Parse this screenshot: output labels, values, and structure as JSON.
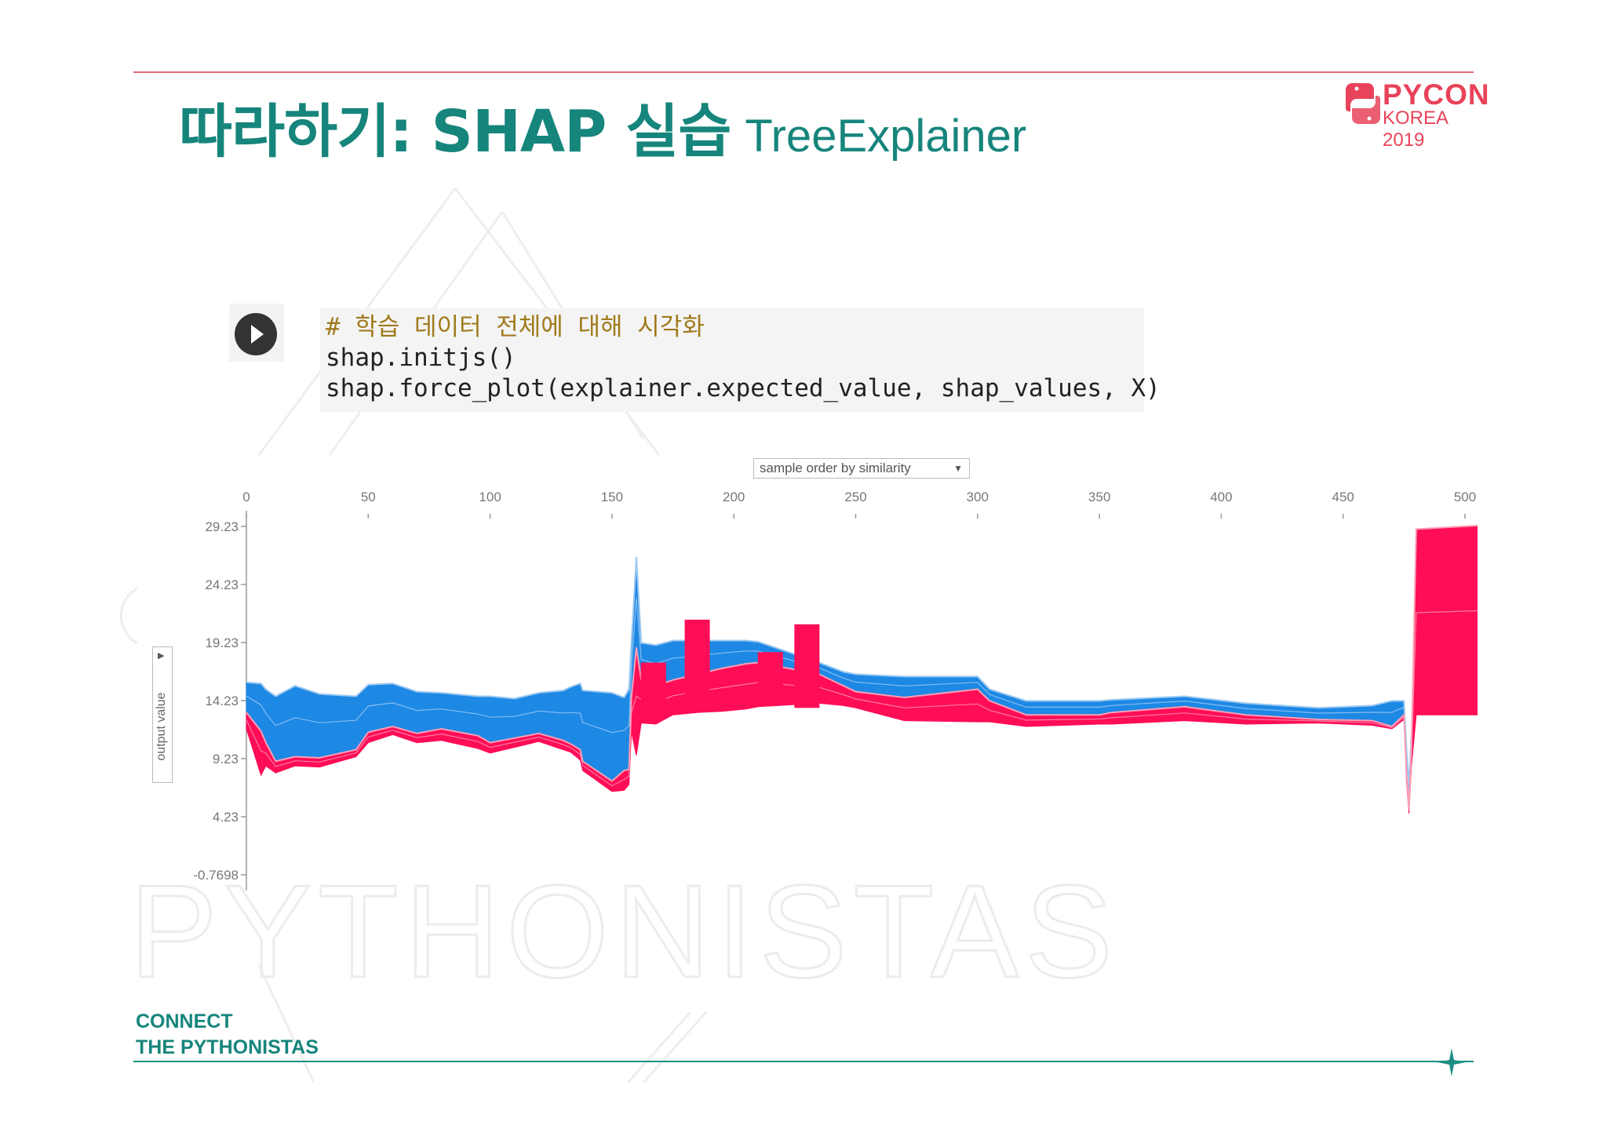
{
  "slide": {
    "title_main": "따라하기: SHAP 실습",
    "title_sub": "TreeExplainer",
    "footer_line1": "CONNECT",
    "footer_line2": "THE PYTHONISTAS",
    "watermark": "PYTHONISTAS",
    "accent_color": "#16857c",
    "brand_color": "#e8435a"
  },
  "logo": {
    "line1": "PYCON",
    "line2": "KOREA 2019",
    "icon": "python-logo-icon"
  },
  "code": {
    "run_icon": "play-icon",
    "comment": "# 학습 데이터 전체에 대해 시각화",
    "line2": "shap.initjs()",
    "line3": "shap.force_plot(explainer.expected_value, shap_values, X)"
  },
  "controls": {
    "x_selector": "sample order by similarity",
    "y_selector": "output value"
  },
  "chart_data": {
    "type": "area",
    "title": "",
    "xlabel": "sample order by similarity",
    "ylabel": "output value",
    "xlim": [
      0,
      505
    ],
    "ylim": [
      -0.7698,
      30.2
    ],
    "x_ticks": [
      0,
      50,
      100,
      150,
      200,
      250,
      300,
      350,
      400,
      450,
      500
    ],
    "y_ticks": [
      "29.23",
      "24.23",
      "19.23",
      "14.23",
      "9.23",
      "4.23",
      "-0.7698"
    ],
    "y_tick_values": [
      29.23,
      24.23,
      19.23,
      14.23,
      9.23,
      4.23,
      -0.7698
    ],
    "colors": {
      "positive": "#ff0d57",
      "negative": "#1e88e5"
    },
    "series": [
      {
        "name": "",
        "color": "#1e88e5",
        "x": [
          0,
          6,
          8,
          12,
          20,
          30,
          45,
          50,
          60,
          70,
          80,
          95,
          100,
          110,
          120,
          130,
          133,
          137,
          138,
          150,
          155,
          157,
          158,
          160,
          162,
          168,
          175,
          185,
          195,
          205,
          210,
          235,
          245,
          250,
          270,
          300,
          305,
          320,
          350,
          355,
          385,
          410,
          440,
          462,
          470,
          475,
          476,
          477,
          478,
          480,
          505
        ],
        "lower": [
          13.2,
          11.6,
          10.6,
          9.0,
          9.4,
          9.3,
          10.0,
          11.5,
          12.0,
          11.4,
          11.8,
          11.2,
          10.6,
          11.0,
          11.4,
          10.8,
          10.5,
          10.0,
          9.0,
          7.3,
          8.2,
          8.3,
          14.5,
          18.8,
          16.0,
          15.5,
          16.0,
          16.5,
          17.0,
          17.4,
          17.5,
          16.5,
          15.5,
          15.0,
          14.5,
          15.2,
          14.2,
          13.0,
          13.0,
          13.2,
          13.7,
          13.0,
          12.6,
          12.5,
          12.0,
          13.0,
          8.0,
          5.0,
          10.0,
          14.5,
          14.5
        ],
        "upper": [
          15.8,
          15.7,
          15.2,
          14.6,
          15.5,
          14.8,
          14.6,
          15.6,
          15.7,
          15.0,
          14.9,
          14.6,
          14.6,
          14.4,
          14.9,
          15.1,
          15.4,
          15.7,
          15.1,
          14.9,
          14.5,
          15.2,
          19.2,
          26.6,
          19.2,
          19.0,
          19.4,
          19.4,
          19.4,
          19.4,
          19.3,
          17.5,
          16.7,
          16.5,
          16.3,
          16.3,
          15.2,
          14.2,
          14.2,
          14.3,
          14.6,
          14.0,
          13.6,
          13.8,
          14.2,
          14.2,
          10.0,
          7.0,
          11.0,
          14.5,
          14.5
        ]
      },
      {
        "name": "",
        "color": "#ff0d57",
        "x": [
          0,
          6,
          8,
          12,
          20,
          30,
          45,
          50,
          60,
          70,
          80,
          95,
          100,
          110,
          120,
          130,
          133,
          137,
          138,
          150,
          155,
          157,
          158,
          160,
          162,
          168,
          175,
          185,
          195,
          205,
          210,
          235,
          245,
          250,
          270,
          300,
          305,
          320,
          350,
          355,
          385,
          410,
          440,
          462,
          470,
          475,
          476,
          477,
          478,
          480,
          505
        ],
        "lower": [
          11.8,
          7.8,
          8.6,
          8.0,
          8.6,
          8.5,
          9.4,
          10.6,
          11.3,
          10.6,
          10.8,
          10.1,
          9.7,
          10.2,
          10.7,
          10.0,
          9.8,
          9.1,
          8.2,
          6.4,
          6.5,
          7.0,
          11.5,
          9.5,
          12.3,
          12.2,
          13.0,
          13.2,
          13.3,
          13.5,
          13.7,
          14.0,
          13.8,
          13.6,
          12.5,
          12.4,
          12.4,
          12.0,
          12.2,
          12.2,
          12.5,
          12.2,
          12.3,
          12.1,
          11.8,
          12.6,
          7.2,
          4.5,
          8.5,
          13.0,
          13.0
        ],
        "upper": [
          13.2,
          11.6,
          10.6,
          9.0,
          9.4,
          9.3,
          10.0,
          11.5,
          12.0,
          11.4,
          11.8,
          11.2,
          10.6,
          11.0,
          11.4,
          10.8,
          10.5,
          10.0,
          9.0,
          7.3,
          8.2,
          8.3,
          14.5,
          18.8,
          16.0,
          15.5,
          16.0,
          16.5,
          17.0,
          17.4,
          17.5,
          16.5,
          15.5,
          15.0,
          14.5,
          15.2,
          14.2,
          13.0,
          13.0,
          13.2,
          13.7,
          13.0,
          12.6,
          12.5,
          12.0,
          13.0,
          8.0,
          5.0,
          10.0,
          29.0,
          29.3
        ]
      }
    ],
    "spikes": [
      {
        "x": 167,
        "y_top": 17.5,
        "y_bottom": 13.5
      },
      {
        "x": 185,
        "y_top": 21.2,
        "y_bottom": 13.4
      },
      {
        "x": 215,
        "y_top": 18.4,
        "y_bottom": 13.8
      },
      {
        "x": 230,
        "y_top": 20.8,
        "y_bottom": 13.6
      }
    ]
  }
}
